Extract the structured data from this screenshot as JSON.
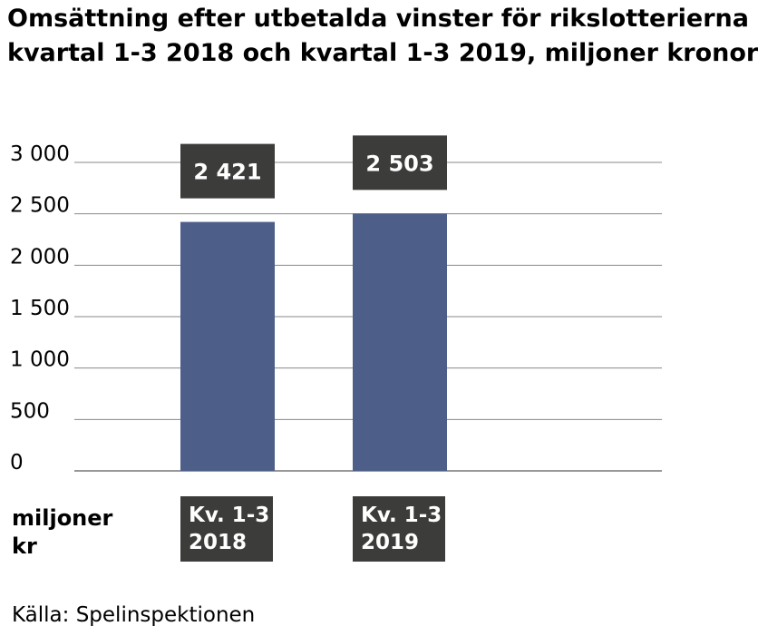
{
  "chart_data": {
    "type": "bar",
    "title": "Omsättning efter utbetalda vinster för rikslotterierna kvartal 1-3 2018 och kvartal 1-3 2019, miljoner kronor",
    "title_lines": [
      "Omsättning efter utbetalda vinster för rikslotterierna",
      "kvartal 1-3 2018 och kvartal 1-3 2019, miljoner kronor"
    ],
    "categories": [
      "Kv. 1-3 2018",
      "Kv. 1-3 2019"
    ],
    "category_lines": [
      [
        "Kv. 1-3",
        "2018"
      ],
      [
        "Kv. 1-3",
        "2019"
      ]
    ],
    "values": [
      2421,
      2503
    ],
    "value_labels": [
      "2 421",
      "2 503"
    ],
    "ylabel": "miljoner kr",
    "ylabel_lines": [
      "miljoner",
      "kr"
    ],
    "ylim": [
      0,
      3000
    ],
    "yticks": [
      0,
      500,
      1000,
      1500,
      2000,
      2500,
      3000
    ],
    "ytick_labels": [
      "0",
      "500",
      "1 000",
      "1 500",
      "2 000",
      "2 500",
      "3 000"
    ],
    "grid": true,
    "bar_color": "#4d5e89",
    "label_box_color": "#3c3c3a",
    "source": "Källa: Spelinspektionen"
  }
}
